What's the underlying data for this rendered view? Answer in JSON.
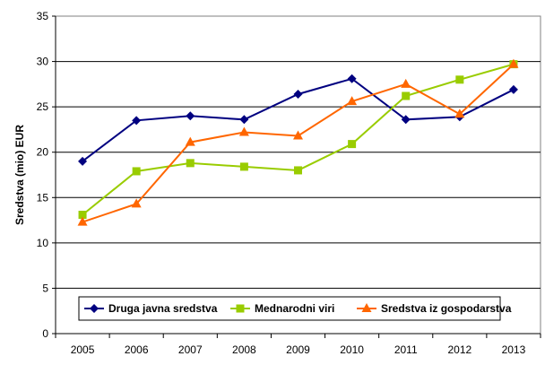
{
  "chart_data": {
    "type": "line",
    "title": "",
    "xlabel": "",
    "ylabel": "Sredstva (mio) EUR",
    "ylim": [
      0,
      35
    ],
    "yticks": [
      0,
      5,
      10,
      15,
      20,
      25,
      30,
      35
    ],
    "categories": [
      "2005",
      "2006",
      "2007",
      "2008",
      "2009",
      "2010",
      "2011",
      "2012",
      "2013"
    ],
    "grid": "horizontal",
    "legend_position": "bottom-inside",
    "series": [
      {
        "name": "Druga javna sredstva",
        "color": "#000080",
        "marker": "diamond",
        "values": [
          19.0,
          23.5,
          24.0,
          23.6,
          26.4,
          28.1,
          23.6,
          23.9,
          26.9
        ]
      },
      {
        "name": "Mednarodni viri",
        "color": "#99CC00",
        "marker": "square",
        "values": [
          13.1,
          17.9,
          18.8,
          18.4,
          18.0,
          20.9,
          26.2,
          28.0,
          29.7
        ]
      },
      {
        "name": "Sredstva iz gospodarstva",
        "color": "#FF6600",
        "marker": "triangle",
        "values": [
          12.3,
          14.3,
          21.1,
          22.2,
          21.8,
          25.6,
          27.5,
          24.2,
          29.7
        ]
      }
    ]
  }
}
